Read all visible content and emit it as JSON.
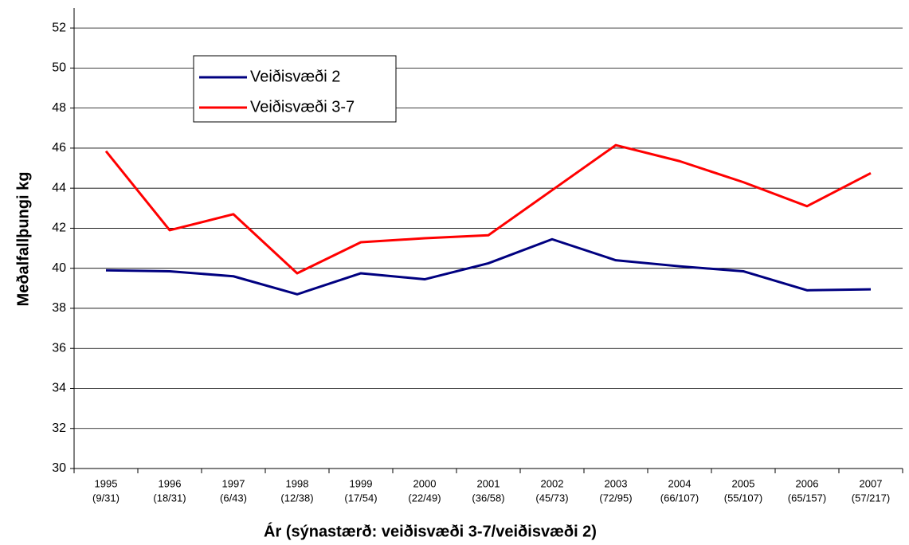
{
  "chart_data": {
    "type": "line",
    "y_label": "Meðalfallþungi kg",
    "x_label": "Ár (sýnastærð: veiðisvæði 3-7/veiðisvæði 2)",
    "categories": [
      "1995",
      "1996",
      "1997",
      "1998",
      "1999",
      "2000",
      "2001",
      "2002",
      "2003",
      "2004",
      "2005",
      "2006",
      "2007"
    ],
    "category_sublabels": [
      "(9/31)",
      "(18/31)",
      "(6/43)",
      "(12/38)",
      "(17/54)",
      "(22/49)",
      "(36/58)",
      "(45/73)",
      "(72/95)",
      "(66/107)",
      "(55/107)",
      "(65/157)",
      "(57/217)"
    ],
    "series": [
      {
        "name": "Veiðisvæði 2",
        "color": "#000080",
        "values": [
          39.9,
          39.85,
          39.6,
          38.7,
          39.75,
          39.45,
          40.25,
          41.45,
          40.4,
          40.1,
          39.85,
          38.9,
          38.95
        ]
      },
      {
        "name": "Veiðisvæði 3-7",
        "color": "#ff0000",
        "values": [
          45.85,
          41.9,
          42.7,
          39.75,
          41.3,
          41.5,
          41.65,
          43.9,
          46.15,
          45.35,
          44.3,
          43.1,
          44.75
        ]
      }
    ],
    "ylim": [
      30,
      53
    ],
    "yticks": [
      30,
      32,
      34,
      36,
      38,
      40,
      42,
      44,
      46,
      48,
      50,
      52
    ],
    "grid": true
  }
}
